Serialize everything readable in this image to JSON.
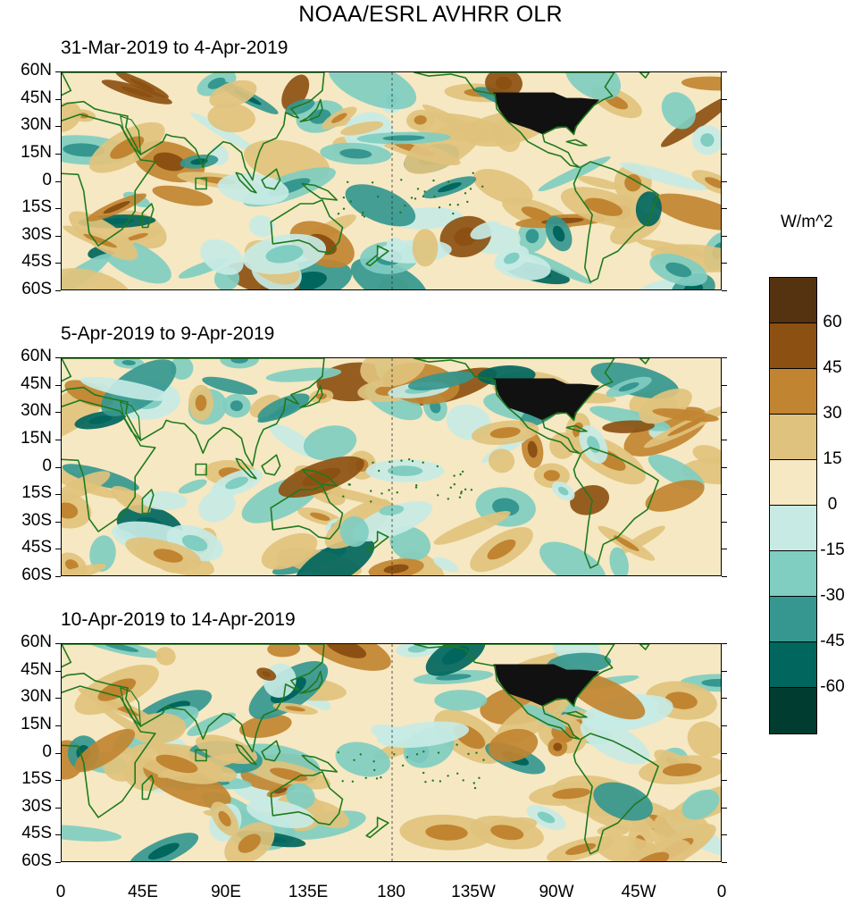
{
  "title": "NOAA/ESRL AVHRR OLR",
  "panels": [
    {
      "label": "31-Mar-2019 to 4-Apr-2019"
    },
    {
      "label": "5-Apr-2019 to 9-Apr-2019"
    },
    {
      "label": "10-Apr-2019 to 14-Apr-2019"
    }
  ],
  "lat_ticks": [
    "60N",
    "45N",
    "30N",
    "15N",
    "0",
    "15S",
    "30S",
    "45S",
    "60S"
  ],
  "lon_ticks": [
    "0",
    "45E",
    "90E",
    "135E",
    "180",
    "135W",
    "90W",
    "45W",
    "0"
  ],
  "colorbar": {
    "units": "W/m^2",
    "labels": [
      "60",
      "45",
      "30",
      "15",
      "0",
      "-15",
      "-30",
      "-45",
      "-60"
    ],
    "colors": [
      "#553210",
      "#8c5112",
      "#c18431",
      "#dfc27d",
      "#f6e8c3",
      "#c7eae5",
      "#80cdc1",
      "#35978f",
      "#01665e",
      "#003c30"
    ]
  },
  "colors": {
    "land_outline": "#1e7a1e",
    "neutral_pos": "#f6e8c3",
    "neutral_neg": "#c7eae5"
  }
}
